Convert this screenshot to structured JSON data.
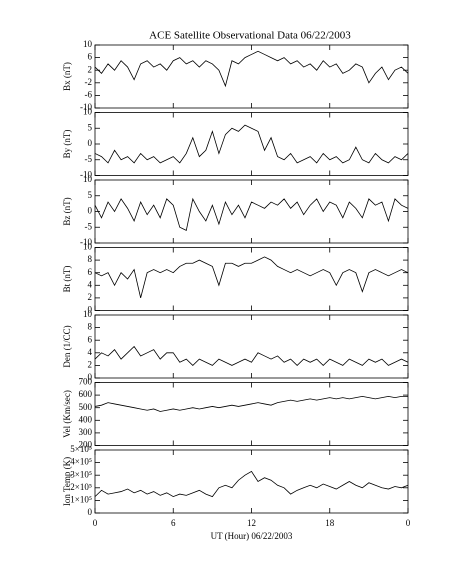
{
  "chart_data": [
    {
      "type": "line",
      "title": "ACE Satellite Observational Data   06/22/2003",
      "ylabel": "Bx (nT)",
      "color": "#000000",
      "x": [
        0,
        0.5,
        1,
        1.5,
        2,
        2.5,
        3,
        3.5,
        4,
        4.5,
        5,
        5.5,
        6,
        6.5,
        7,
        7.5,
        8,
        8.5,
        9,
        9.5,
        10,
        10.5,
        11,
        11.5,
        12,
        12.5,
        13,
        13.5,
        14,
        14.5,
        15,
        15.5,
        16,
        16.5,
        17,
        17.5,
        18,
        18.5,
        19,
        19.5,
        20,
        20.5,
        21,
        21.5,
        22,
        22.5,
        23,
        23.5,
        24
      ],
      "values": [
        3,
        1,
        4,
        2,
        5,
        3,
        -1,
        4,
        5,
        3,
        4,
        2,
        5,
        6,
        4,
        5,
        3,
        5,
        4,
        2,
        -3,
        5,
        4,
        6,
        7,
        8,
        7,
        6,
        5,
        6,
        4,
        5,
        3,
        4,
        2,
        5,
        3,
        4,
        1,
        2,
        4,
        3,
        -2,
        1,
        3,
        -1,
        2,
        3,
        1
      ],
      "xlim": [
        0,
        24
      ],
      "xticks": [
        0,
        6,
        12,
        18,
        24
      ],
      "ylim": [
        -10,
        10
      ],
      "yticks": [
        -10,
        -6,
        -2,
        2,
        6,
        10
      ]
    },
    {
      "type": "line",
      "ylabel": "By (nT)",
      "color": "#000000",
      "x": [
        0,
        0.5,
        1,
        1.5,
        2,
        2.5,
        3,
        3.5,
        4,
        4.5,
        5,
        5.5,
        6,
        6.5,
        7,
        7.5,
        8,
        8.5,
        9,
        9.5,
        10,
        10.5,
        11,
        11.5,
        12,
        12.5,
        13,
        13.5,
        14,
        14.5,
        15,
        15.5,
        16,
        16.5,
        17,
        17.5,
        18,
        18.5,
        19,
        19.5,
        20,
        20.5,
        21,
        21.5,
        22,
        22.5,
        23,
        23.5,
        24
      ],
      "values": [
        -3,
        -4,
        -6,
        -2,
        -5,
        -4,
        -6,
        -3,
        -5,
        -4,
        -6,
        -5,
        -4,
        -6,
        -3,
        2,
        -4,
        -2,
        4,
        -3,
        3,
        5,
        4,
        6,
        5,
        4,
        -2,
        2,
        -4,
        -5,
        -3,
        -6,
        -5,
        -4,
        -6,
        -3,
        -5,
        -4,
        -6,
        -5,
        -1,
        -5,
        -6,
        -3,
        -5,
        -6,
        -4,
        -5,
        -3
      ],
      "xlim": [
        0,
        24
      ],
      "xticks": [
        0,
        6,
        12,
        18,
        24
      ],
      "ylim": [
        -10,
        10
      ],
      "yticks": [
        -10,
        -5,
        0,
        5,
        10
      ]
    },
    {
      "type": "line",
      "ylabel": "Bz (nT)",
      "color": "#000000",
      "x": [
        0,
        0.5,
        1,
        1.5,
        2,
        2.5,
        3,
        3.5,
        4,
        4.5,
        5,
        5.5,
        6,
        6.5,
        7,
        7.5,
        8,
        8.5,
        9,
        9.5,
        10,
        10.5,
        11,
        11.5,
        12,
        12.5,
        13,
        13.5,
        14,
        14.5,
        15,
        15.5,
        16,
        16.5,
        17,
        17.5,
        18,
        18.5,
        19,
        19.5,
        20,
        20.5,
        21,
        21.5,
        22,
        22.5,
        23,
        23.5,
        24
      ],
      "values": [
        2,
        -2,
        3,
        0,
        4,
        1,
        -3,
        3,
        -1,
        2,
        -2,
        4,
        2,
        -5,
        -6,
        4,
        0,
        -3,
        2,
        -4,
        3,
        -1,
        2,
        -2,
        3,
        2,
        1,
        3,
        2,
        4,
        1,
        3,
        -1,
        2,
        4,
        0,
        3,
        2,
        -2,
        3,
        1,
        -2,
        4,
        2,
        3,
        -3,
        4,
        2,
        1
      ],
      "xlim": [
        0,
        24
      ],
      "xticks": [
        0,
        6,
        12,
        18,
        24
      ],
      "ylim": [
        -10,
        10
      ],
      "yticks": [
        -10,
        -5,
        0,
        5,
        10
      ]
    },
    {
      "type": "line",
      "ylabel": "Bt (nT)",
      "color": "#000000",
      "x": [
        0,
        0.5,
        1,
        1.5,
        2,
        2.5,
        3,
        3.5,
        4,
        4.5,
        5,
        5.5,
        6,
        6.5,
        7,
        7.5,
        8,
        8.5,
        9,
        9.5,
        10,
        10.5,
        11,
        11.5,
        12,
        12.5,
        13,
        13.5,
        14,
        14.5,
        15,
        15.5,
        16,
        16.5,
        17,
        17.5,
        18,
        18.5,
        19,
        19.5,
        20,
        20.5,
        21,
        21.5,
        22,
        22.5,
        23,
        23.5,
        24
      ],
      "values": [
        6,
        5.5,
        6,
        4,
        6,
        5,
        6.5,
        2,
        6,
        6.5,
        6,
        6.5,
        6,
        7,
        7.5,
        7.5,
        8,
        7.5,
        7,
        4,
        7.5,
        7.5,
        7,
        7.5,
        7.5,
        8,
        8.5,
        8,
        7,
        6.5,
        6,
        6.5,
        6,
        5.5,
        6,
        6.5,
        6,
        4,
        6,
        6.5,
        6,
        3,
        6,
        6.5,
        6,
        5.5,
        6,
        6.5,
        6
      ],
      "xlim": [
        0,
        24
      ],
      "xticks": [
        0,
        6,
        12,
        18,
        24
      ],
      "ylim": [
        0,
        10
      ],
      "yticks": [
        0,
        2,
        4,
        6,
        8,
        10
      ]
    },
    {
      "type": "line",
      "ylabel": "Den (1/CC)",
      "color": "#000000",
      "x": [
        0,
        0.5,
        1,
        1.5,
        2,
        2.5,
        3,
        3.5,
        4,
        4.5,
        5,
        5.5,
        6,
        6.5,
        7,
        7.5,
        8,
        8.5,
        9,
        9.5,
        10,
        10.5,
        11,
        11.5,
        12,
        12.5,
        13,
        13.5,
        14,
        14.5,
        15,
        15.5,
        16,
        16.5,
        17,
        17.5,
        18,
        18.5,
        19,
        19.5,
        20,
        20.5,
        21,
        21.5,
        22,
        22.5,
        23,
        23.5,
        24
      ],
      "values": [
        3,
        4,
        3.5,
        4.5,
        3,
        4,
        5,
        3.5,
        4,
        4.5,
        3,
        4,
        4,
        2.5,
        3,
        2,
        3,
        2.5,
        2,
        3,
        2.5,
        2,
        2.5,
        3,
        2.5,
        4,
        3.5,
        3,
        3.5,
        2.5,
        3,
        2,
        3,
        2.5,
        3,
        2,
        3,
        2.5,
        2,
        3,
        2.5,
        2,
        3,
        2.5,
        3,
        2,
        2.5,
        3,
        2.5
      ],
      "xlim": [
        0,
        24
      ],
      "xticks": [
        0,
        6,
        12,
        18,
        24
      ],
      "ylim": [
        0,
        10
      ],
      "yticks": [
        0,
        2,
        4,
        6,
        8,
        10
      ]
    },
    {
      "type": "line",
      "ylabel": "Vel (Km/sec)",
      "color": "#000000",
      "x": [
        0,
        0.5,
        1,
        1.5,
        2,
        2.5,
        3,
        3.5,
        4,
        4.5,
        5,
        5.5,
        6,
        6.5,
        7,
        7.5,
        8,
        8.5,
        9,
        9.5,
        10,
        10.5,
        11,
        11.5,
        12,
        12.5,
        13,
        13.5,
        14,
        14.5,
        15,
        15.5,
        16,
        16.5,
        17,
        17.5,
        18,
        18.5,
        19,
        19.5,
        20,
        20.5,
        21,
        21.5,
        22,
        22.5,
        23,
        23.5,
        24
      ],
      "values": [
        510,
        520,
        540,
        530,
        520,
        510,
        500,
        490,
        480,
        490,
        470,
        480,
        490,
        480,
        490,
        500,
        490,
        500,
        510,
        500,
        510,
        520,
        510,
        520,
        530,
        540,
        530,
        520,
        540,
        550,
        560,
        550,
        560,
        570,
        560,
        570,
        580,
        570,
        580,
        570,
        580,
        590,
        580,
        570,
        580,
        590,
        580,
        590,
        590
      ],
      "xlim": [
        0,
        24
      ],
      "xticks": [
        0,
        6,
        12,
        18,
        24
      ],
      "ylim": [
        200,
        700
      ],
      "yticks": [
        200,
        300,
        400,
        500,
        600,
        700
      ]
    },
    {
      "type": "line",
      "ylabel": "Ion Temp (K)",
      "xlabel": "UT (Hour)   06/22/2003",
      "color": "#000000",
      "x": [
        0,
        0.5,
        1,
        1.5,
        2,
        2.5,
        3,
        3.5,
        4,
        4.5,
        5,
        5.5,
        6,
        6.5,
        7,
        7.5,
        8,
        8.5,
        9,
        9.5,
        10,
        10.5,
        11,
        11.5,
        12,
        12.5,
        13,
        13.5,
        14,
        14.5,
        15,
        15.5,
        16,
        16.5,
        17,
        17.5,
        18,
        18.5,
        19,
        19.5,
        20,
        20.5,
        21,
        21.5,
        22,
        22.5,
        23,
        23.5,
        24
      ],
      "values": [
        130000,
        180000,
        150000,
        160000,
        170000,
        190000,
        160000,
        180000,
        150000,
        170000,
        140000,
        160000,
        130000,
        150000,
        140000,
        160000,
        180000,
        150000,
        130000,
        200000,
        220000,
        200000,
        260000,
        300000,
        330000,
        250000,
        280000,
        260000,
        220000,
        200000,
        150000,
        180000,
        200000,
        220000,
        200000,
        230000,
        210000,
        190000,
        220000,
        250000,
        220000,
        200000,
        240000,
        220000,
        200000,
        190000,
        210000,
        200000,
        220000
      ],
      "xlim": [
        0,
        24
      ],
      "xticks": [
        0,
        6,
        12,
        18,
        {
          "value": 24,
          "label": "0"
        }
      ],
      "ylim": [
        0,
        500000
      ],
      "yticks": [
        0,
        {
          "value": 100000,
          "label": "1×10⁵"
        },
        {
          "value": 200000,
          "label": "2×10⁵"
        },
        {
          "value": 300000,
          "label": "3×10⁵"
        },
        {
          "value": 400000,
          "label": "4×10⁵"
        },
        {
          "value": 500000,
          "label": "5×10⁵"
        }
      ]
    }
  ]
}
